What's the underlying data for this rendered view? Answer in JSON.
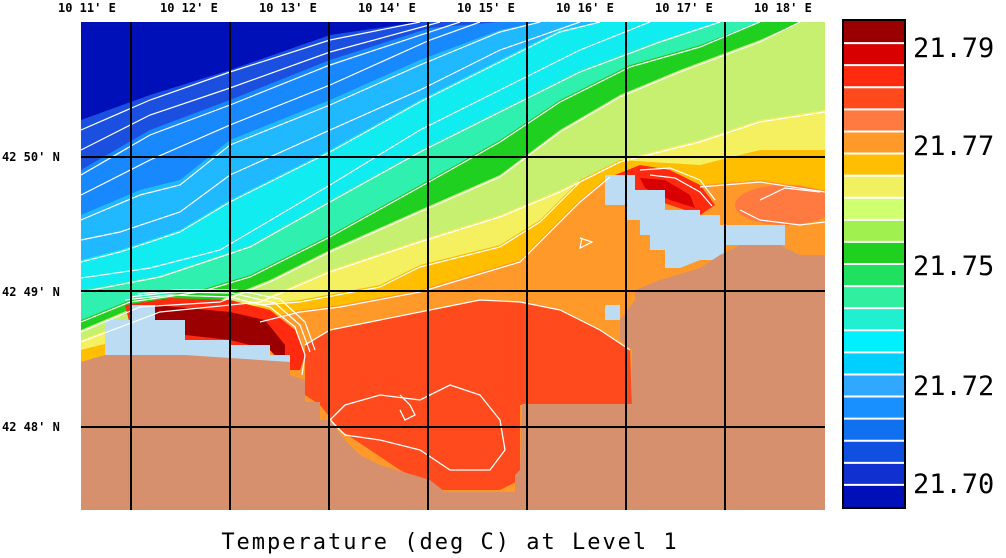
{
  "title": "Temperature (deg C) at Level 1",
  "longitude_labels": [
    "10 11' E",
    "10 12' E",
    "10 13' E",
    "10 14' E",
    "10 15' E",
    "10 16' E",
    "10 17' E",
    "10 18' E"
  ],
  "latitude_labels": [
    "42 50' N",
    "42 49' N",
    "42 48' N"
  ],
  "colorbar": {
    "tick_labels": [
      "21.79",
      "21.77",
      "21.75",
      "21.72",
      "21.70"
    ],
    "colors": [
      "#9b0000",
      "#d80000",
      "#ff2a10",
      "#ff4a1e",
      "#ff7a40",
      "#ff9a2a",
      "#ffbe00",
      "#f0f060",
      "#d0ff70",
      "#a0f050",
      "#20d020",
      "#20e060",
      "#30f0a0",
      "#20f0d0",
      "#00f0ff",
      "#00d0ff",
      "#30a8ff",
      "#1890ff",
      "#1070f0",
      "#1050e0",
      "#1030d0",
      "#0010b8"
    ]
  },
  "colors": {
    "land": "#d6906e",
    "masked": "#bcdcf4",
    "grid": "#000000"
  }
}
